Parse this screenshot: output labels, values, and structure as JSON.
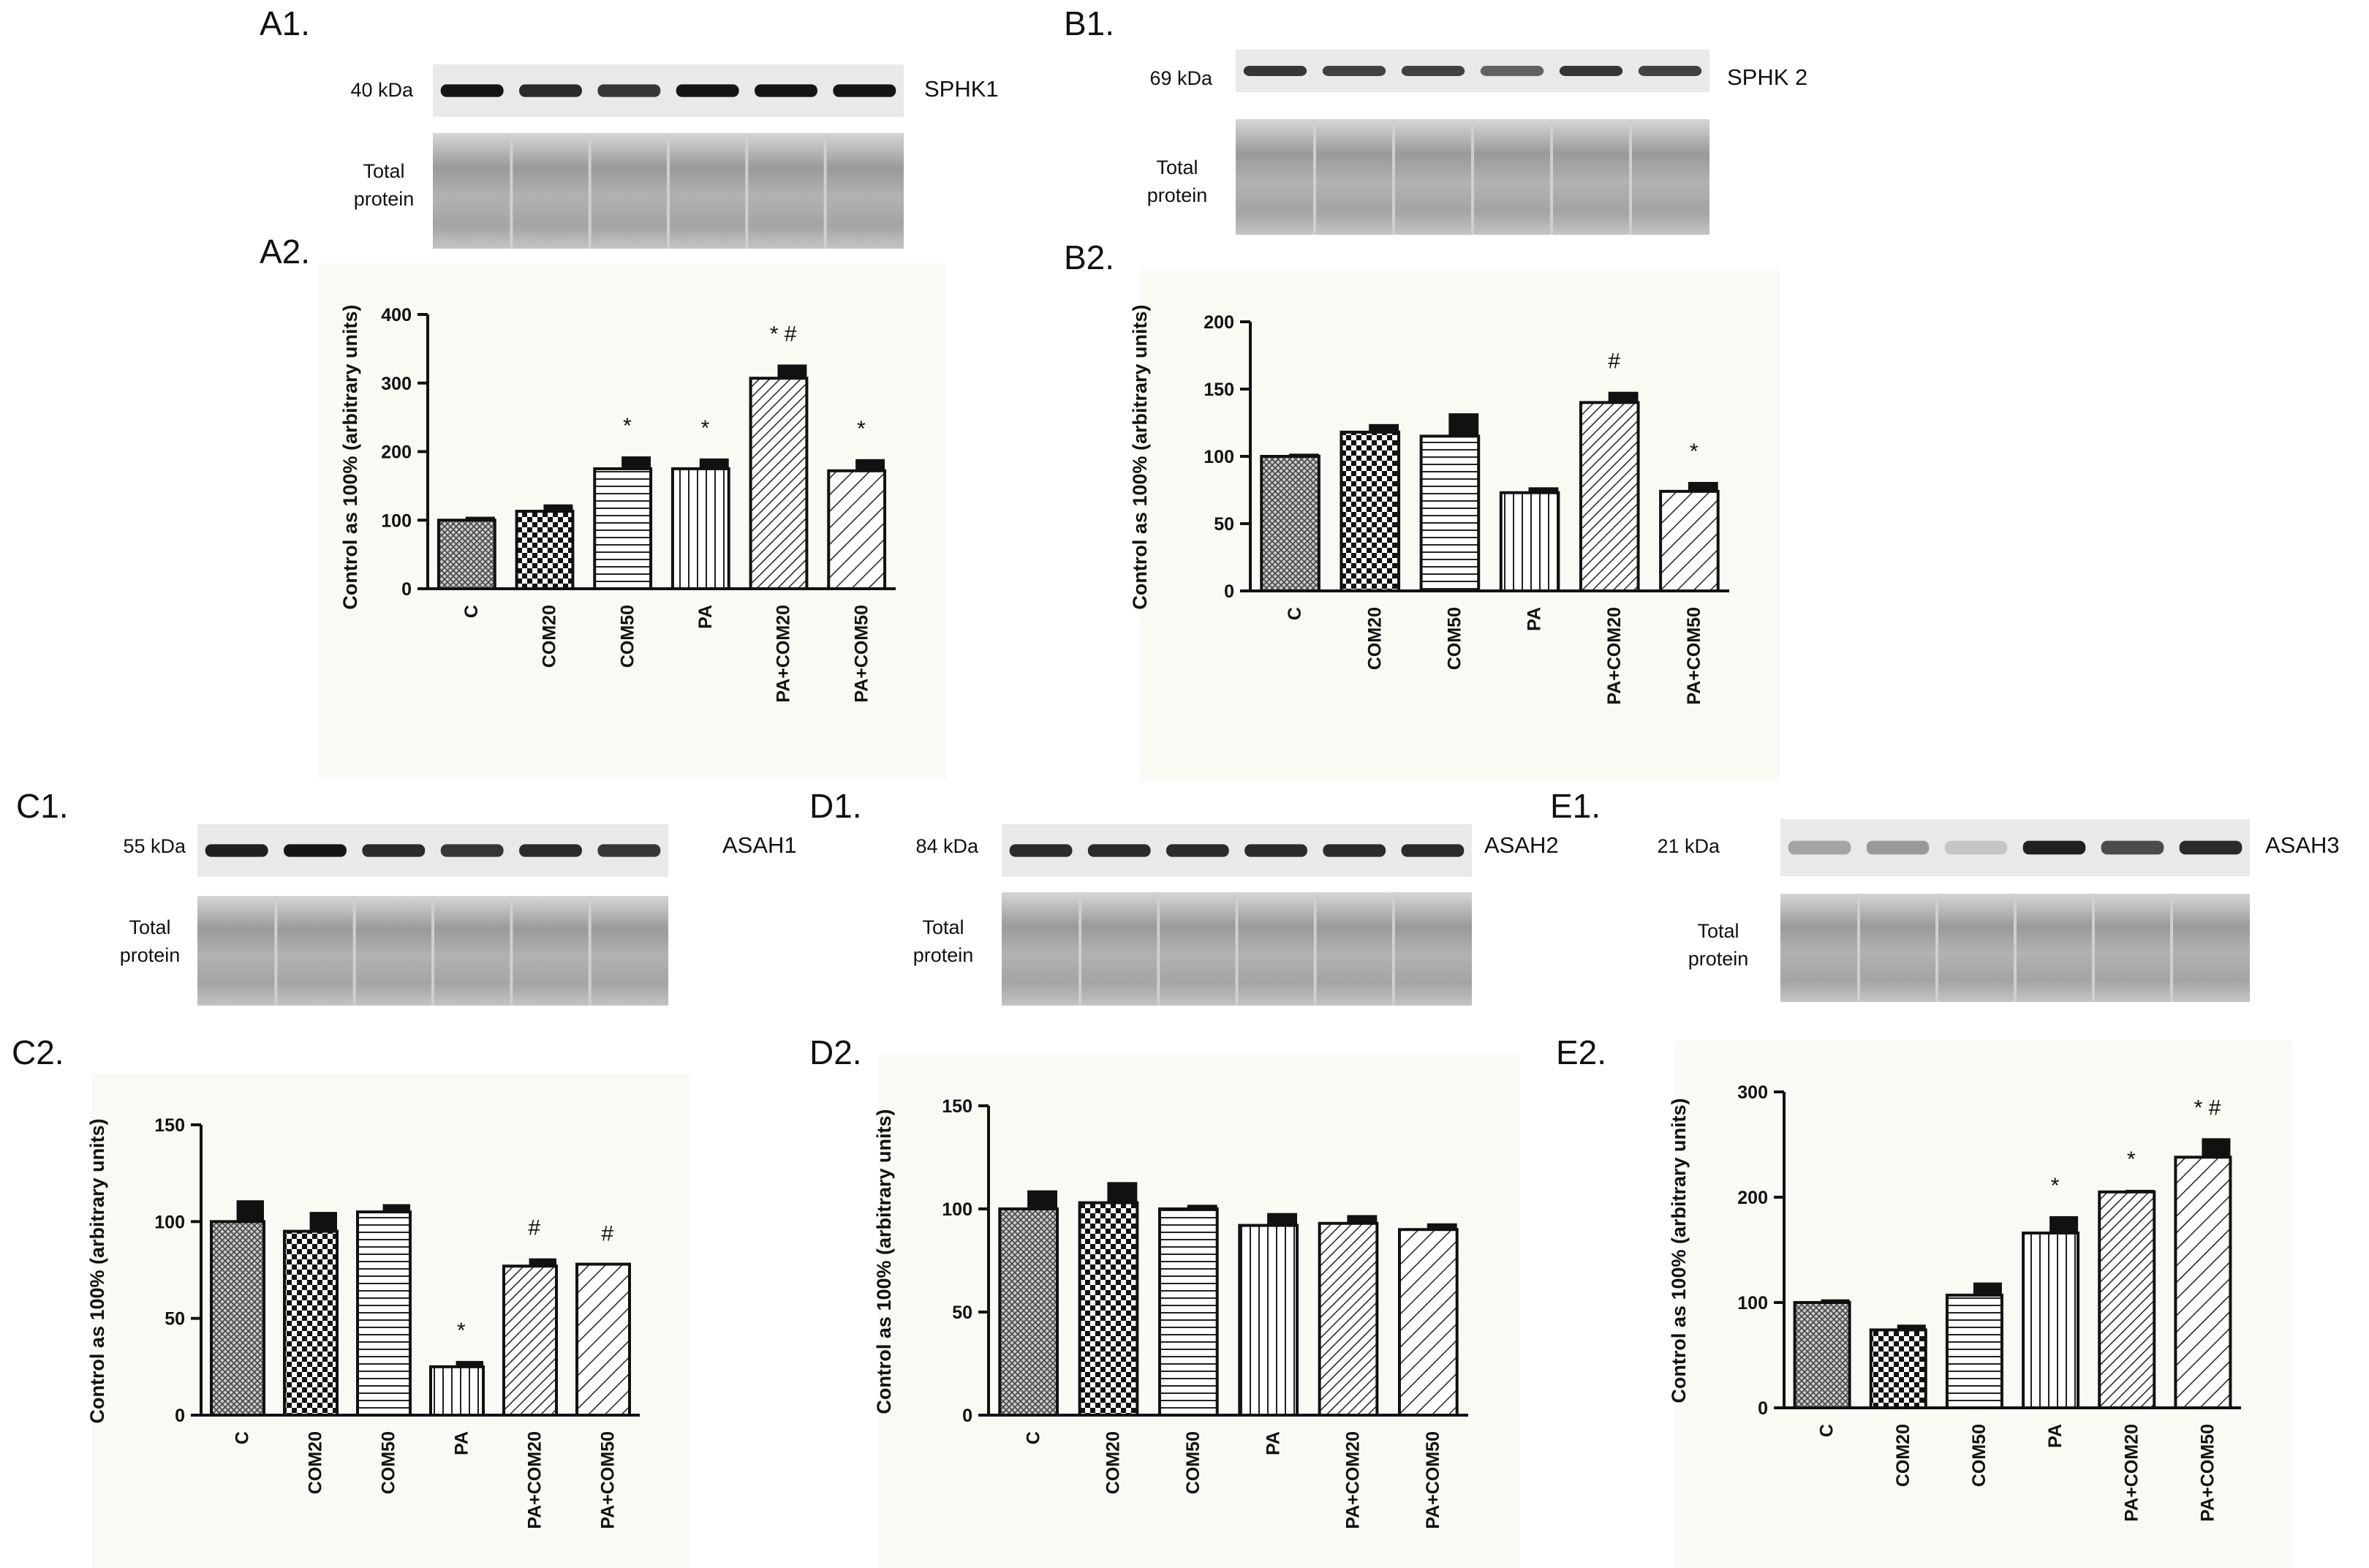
{
  "panels": [
    {
      "blot_label": "A1.",
      "chart_label": "A2.",
      "kda": "40 kDa",
      "protein": "SPHK1",
      "total_protein": [
        "Total",
        "protein"
      ],
      "band_intensity": [
        0.95,
        0.85,
        0.8,
        0.95,
        0.95,
        0.95
      ]
    },
    {
      "blot_label": "B1.",
      "chart_label": "B2.",
      "kda": "69 kDa",
      "protein": "SPHK 2",
      "total_protein": [
        "Total",
        "protein"
      ],
      "band_intensity": [
        0.8,
        0.75,
        0.75,
        0.6,
        0.8,
        0.75
      ]
    },
    {
      "blot_label": "C1.",
      "chart_label": "C2.",
      "kda": "55 kDa",
      "protein": "ASAH1",
      "total_protein": [
        "Total",
        "protein"
      ],
      "band_intensity": [
        0.9,
        0.95,
        0.85,
        0.8,
        0.85,
        0.8
      ]
    },
    {
      "blot_label": "D1.",
      "chart_label": "D2.",
      "kda": "84 kDa",
      "protein": "ASAH2",
      "total_protein": [
        "Total",
        "protein"
      ],
      "band_intensity": [
        0.85,
        0.85,
        0.85,
        0.85,
        0.85,
        0.85
      ]
    },
    {
      "blot_label": "E1.",
      "chart_label": "E2.",
      "kda": "21 kDa",
      "protein": "ASAH3",
      "total_protein": [
        "Total",
        "protein"
      ],
      "band_intensity": [
        0.3,
        0.35,
        0.15,
        0.9,
        0.7,
        0.85
      ]
    }
  ],
  "chart_data": [
    {
      "type": "bar",
      "panel": "A2",
      "ylabel": "Control as 100% (arbitrary units)",
      "categories": [
        "C",
        "COM20",
        "COM50",
        "PA",
        "PA+COM20",
        "PA+COM50"
      ],
      "values": [
        100,
        113,
        175,
        175,
        307,
        172
      ],
      "errors": [
        5,
        10,
        18,
        15,
        20,
        17
      ],
      "annotations": [
        "",
        "",
        "*",
        "*",
        "* #",
        "*"
      ],
      "ylim": [
        0,
        400
      ],
      "yticks": [
        0,
        100,
        200,
        300,
        400
      ]
    },
    {
      "type": "bar",
      "panel": "B2",
      "ylabel": "Control as 100% (arbitrary units)",
      "categories": [
        "C",
        "COM20",
        "COM50",
        "PA",
        "PA+COM20",
        "PA+COM50"
      ],
      "values": [
        100,
        118,
        115,
        73,
        140,
        74
      ],
      "errors": [
        2,
        6,
        17,
        4,
        8,
        7
      ],
      "annotations": [
        "",
        "",
        "",
        "",
        "#",
        "*"
      ],
      "ylim": [
        0,
        200
      ],
      "yticks": [
        0,
        50,
        100,
        150,
        200
      ]
    },
    {
      "type": "bar",
      "panel": "C2",
      "ylabel": "Control as 100% (arbitrary units)",
      "categories": [
        "C",
        "COM20",
        "COM50",
        "PA",
        "PA+COM20",
        "PA+COM50"
      ],
      "values": [
        100,
        95,
        105,
        25,
        77,
        78
      ],
      "errors": [
        11,
        10,
        4,
        3,
        4,
        0
      ],
      "annotations": [
        "",
        "",
        "",
        "*",
        "#",
        "#"
      ],
      "ylim": [
        0,
        150
      ],
      "yticks": [
        0,
        50,
        100,
        150
      ]
    },
    {
      "type": "bar",
      "panel": "D2",
      "ylabel": "Control as 100% (arbitrary units)",
      "categories": [
        "C",
        "COM20",
        "COM50",
        "PA",
        "PA+COM20",
        "PA+COM50"
      ],
      "values": [
        100,
        103,
        100,
        92,
        93,
        90
      ],
      "errors": [
        9,
        10,
        2,
        6,
        4,
        3
      ],
      "annotations": [
        "",
        "",
        "",
        "",
        "",
        ""
      ],
      "ylim": [
        0,
        150
      ],
      "yticks": [
        0,
        50,
        100,
        150
      ]
    },
    {
      "type": "bar",
      "panel": "E2",
      "ylabel": "Control as 100% (arbitrary units)",
      "categories": [
        "C",
        "COM20",
        "COM50",
        "PA",
        "PA+COM20",
        "PA+COM50"
      ],
      "values": [
        100,
        74,
        107,
        166,
        205,
        238
      ],
      "errors": [
        3,
        5,
        12,
        16,
        2,
        18
      ],
      "annotations": [
        "",
        "",
        "",
        "*",
        "*",
        "* #"
      ],
      "ylim": [
        0,
        300
      ],
      "yticks": [
        0,
        100,
        200,
        300
      ]
    }
  ]
}
